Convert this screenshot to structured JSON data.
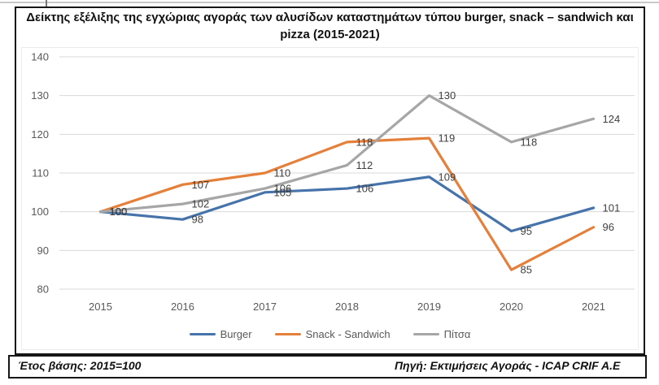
{
  "chart_data": {
    "type": "line",
    "title": "Δείκτης εξέλιξης της εγχώριας αγοράς των αλυσίδων καταστημάτων τύπου burger, snack – sandwich και pizza (2015-2021)",
    "categories": [
      "2015",
      "2016",
      "2017",
      "2018",
      "2019",
      "2020",
      "2021"
    ],
    "series": [
      {
        "name": "Burger",
        "color": "#4673AA",
        "values": [
          100,
          98,
          105,
          106,
          109,
          95,
          101
        ]
      },
      {
        "name": "Snack - Sandwich",
        "color": "#E5803B",
        "values": [
          100,
          107,
          110,
          118,
          119,
          85,
          96
        ]
      },
      {
        "name": "Πίτσα",
        "color": "#A6A6A6",
        "values": [
          100,
          102,
          106,
          112,
          130,
          118,
          124
        ]
      }
    ],
    "ylim": [
      80,
      140
    ],
    "ytick_step": 10,
    "grid": true,
    "legend_position": "bottom",
    "data_labels": true,
    "gridline_color": "#d9d9d9",
    "axis_text_color": "#595959",
    "data_label_color": "#3f3f3f"
  },
  "footer": {
    "base_year": "Έτος βάσης: 2015=100",
    "source": "Πηγή: Εκτιμήσεις Αγοράς - ICAP CRIF A.E"
  }
}
